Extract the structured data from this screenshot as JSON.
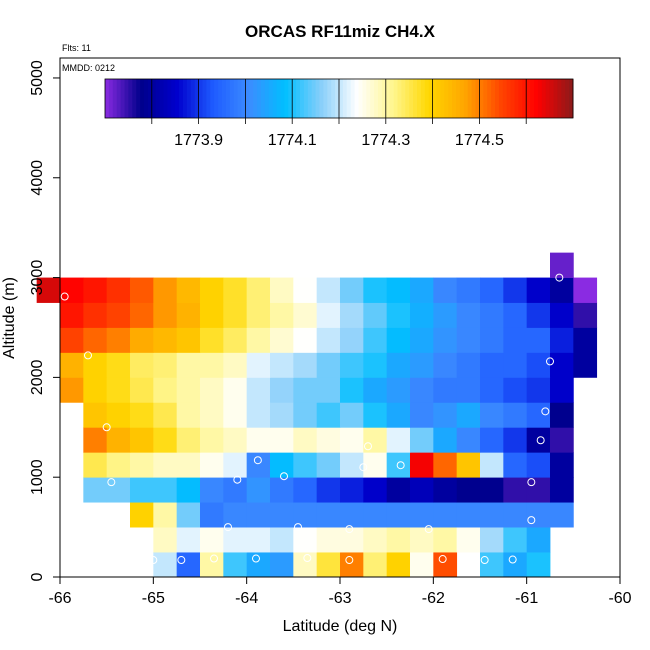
{
  "chart_data": {
    "type": "heatmap",
    "title": "ORCAS RF11miz CH4.X",
    "annotations": {
      "flights": "Flts: 11",
      "date": "MMDD: 0212"
    },
    "xlabel": "Latitude (deg N)",
    "ylabel": "Altitude (m)",
    "xlim": [
      -66,
      -60
    ],
    "ylim": [
      0,
      5200
    ],
    "x_ticks": [
      -66,
      -65,
      -64,
      -63,
      -62,
      -61,
      -60
    ],
    "y_ticks": [
      0,
      1000,
      2000,
      3000,
      4000,
      5000
    ],
    "colorbar": {
      "min": 1773.7,
      "max": 1774.7,
      "tick_values": [
        1773.9,
        1774.1,
        1774.3,
        1774.5
      ],
      "tick_labels": [
        "1773.9",
        "1774.1",
        "1774.3",
        "1774.5"
      ],
      "colors": [
        "#8A2BE2",
        "#00008B",
        "#0000CD",
        "#1E5BFF",
        "#3C8CFF",
        "#00BFFF",
        "#87CEFA",
        "#FFFFFF",
        "#FFF68F",
        "#FFD700",
        "#FFA500",
        "#FF4500",
        "#FF0000",
        "#8B1A1A"
      ]
    },
    "cell_size": {
      "dlat": 0.25,
      "dalt": 250
    },
    "rows": [
      {
        "alt": 0,
        "lat0": -65.0,
        "values": [
          1774.2,
          1773.95,
          1774.3,
          1774.12,
          1774.05,
          1774.03,
          1774.28,
          1774.36,
          1774.5,
          1774.33,
          1774.4,
          1774.25,
          1774.54,
          null,
          1774.12,
          1774.05,
          1774.1
        ]
      },
      {
        "alt": 250,
        "lat0": -65.0,
        "values": [
          1774.28,
          1774.22,
          1774.25,
          1774.22,
          1774.22,
          1774.2,
          1774.24,
          1774.26,
          1774.26,
          1774.28,
          1774.3,
          1774.28,
          1774.3,
          1774.25,
          1774.18,
          1774.12,
          1774.05
        ]
      },
      {
        "alt": 500,
        "lat0": -65.25,
        "values": [
          1774.4,
          1774.3,
          1774.15,
          1773.98,
          1774.0,
          1774.0,
          1774.0,
          1774.0,
          1774.0,
          1774.0,
          1774.0,
          1774.0,
          1774.0,
          1774.0,
          1774.0,
          1774.0,
          1774.0,
          1774.0,
          1774.0
        ]
      },
      {
        "alt": 750,
        "lat0": -65.75,
        "values": [
          1774.15,
          1774.15,
          1774.12,
          1774.12,
          1774.08,
          1774.0,
          1773.98,
          1774.02,
          1773.98,
          1773.95,
          1773.9,
          1773.88,
          1773.85,
          1773.8,
          1773.83,
          1773.8,
          1773.78,
          1773.78,
          1773.75,
          1773.75,
          1773.8
        ]
      },
      {
        "alt": 1000,
        "lat0": -65.75,
        "values": [
          1774.35,
          1774.32,
          1774.3,
          1774.28,
          1774.28,
          1774.25,
          1774.22,
          1774.0,
          1774.08,
          1774.12,
          1774.15,
          1774.2,
          1774.25,
          1774.12,
          1774.63,
          1774.52,
          1774.42,
          1774.2,
          1773.95,
          1773.92,
          1773.8
        ]
      },
      {
        "alt": 1250,
        "lat0": -65.75,
        "values": [
          1774.5,
          1774.45,
          1774.42,
          1774.38,
          1774.33,
          1774.3,
          1774.28,
          1774.25,
          1774.25,
          1774.28,
          1774.26,
          1774.25,
          1774.3,
          1774.22,
          1774.15,
          1774.05,
          1774.0,
          1773.95,
          1773.9,
          1773.8,
          1773.75
        ]
      },
      {
        "alt": 1500,
        "lat0": -65.75,
        "values": [
          1774.42,
          1774.4,
          1774.38,
          1774.35,
          1774.3,
          1774.28,
          1774.25,
          1774.2,
          1774.18,
          1774.15,
          1774.12,
          1774.15,
          1774.1,
          1774.05,
          1774.0,
          1774.02,
          1774.05,
          1774.0,
          1773.98,
          1773.95,
          1773.78
        ]
      },
      {
        "alt": 1750,
        "lat0": -66.0,
        "values": [
          1774.48,
          1774.4,
          1774.38,
          1774.35,
          1774.32,
          1774.3,
          1774.28,
          1774.25,
          1774.2,
          1774.17,
          1774.15,
          1774.15,
          1774.1,
          1774.05,
          1774.03,
          1774.0,
          1773.98,
          1773.98,
          1773.95,
          1773.92,
          1773.9,
          1773.85
        ]
      },
      {
        "alt": 2000,
        "lat0": -66.0,
        "values": [
          1774.45,
          1774.4,
          1774.38,
          1774.34,
          1774.33,
          1774.3,
          1774.3,
          1774.28,
          1774.22,
          1774.2,
          1774.18,
          1774.15,
          1774.12,
          1774.1,
          1774.05,
          1774.03,
          1774.0,
          1773.98,
          1773.95,
          1773.95,
          1773.92,
          1773.85,
          1773.8
        ]
      },
      {
        "alt": 2250,
        "lat0": -66.0,
        "values": [
          1774.55,
          1774.52,
          1774.5,
          1774.46,
          1774.44,
          1774.42,
          1774.37,
          1774.34,
          1774.3,
          1774.27,
          1774.24,
          1774.2,
          1774.17,
          1774.12,
          1774.08,
          1774.05,
          1774.02,
          1774.0,
          1773.98,
          1773.95,
          1773.95,
          1773.88,
          1773.8
        ]
      },
      {
        "alt": 2500,
        "lat0": -66.0,
        "values": [
          1774.6,
          1774.57,
          1774.55,
          1774.52,
          1774.48,
          1774.45,
          1774.4,
          1774.37,
          1774.33,
          1774.3,
          1774.27,
          1774.22,
          1774.18,
          1774.14,
          1774.1,
          1774.06,
          1774.03,
          1774.0,
          1773.98,
          1773.95,
          1773.9,
          1773.85,
          1773.75
        ]
      },
      {
        "alt": 2750,
        "lat0": -66.25,
        "values": [
          1774.65,
          1774.62,
          1774.6,
          1774.57,
          1774.53,
          1774.48,
          1774.44,
          1774.4,
          1774.37,
          1774.33,
          1774.28,
          1774.24,
          1774.2,
          1774.15,
          1774.1,
          1774.08,
          1774.05,
          1774.0,
          1773.98,
          1773.95,
          1773.9,
          1773.85,
          1773.8,
          1773.7
        ]
      },
      {
        "alt": 3000,
        "lat0": -60.75,
        "values": [
          1773.72
        ]
      }
    ],
    "points": [
      [
        -65.0,
        170
      ],
      [
        -64.7,
        170
      ],
      [
        -64.35,
        185
      ],
      [
        -63.9,
        185
      ],
      [
        -63.35,
        190
      ],
      [
        -62.9,
        170
      ],
      [
        -61.9,
        180
      ],
      [
        -61.45,
        170
      ],
      [
        -61.15,
        175
      ],
      [
        -64.2,
        500
      ],
      [
        -63.45,
        500
      ],
      [
        -62.9,
        480
      ],
      [
        -62.05,
        480
      ],
      [
        -60.95,
        570
      ],
      [
        -64.1,
        975
      ],
      [
        -63.6,
        1010
      ],
      [
        -62.75,
        1100
      ],
      [
        -62.35,
        1120
      ],
      [
        -60.95,
        950
      ],
      [
        -65.45,
        950
      ],
      [
        -63.88,
        1170
      ],
      [
        -65.5,
        1500
      ],
      [
        -62.7,
        1310
      ],
      [
        -60.85,
        1370
      ],
      [
        -60.8,
        1660
      ],
      [
        -65.7,
        2220
      ],
      [
        -60.75,
        2160
      ],
      [
        -65.95,
        2810
      ],
      [
        -60.65,
        3000
      ]
    ]
  }
}
